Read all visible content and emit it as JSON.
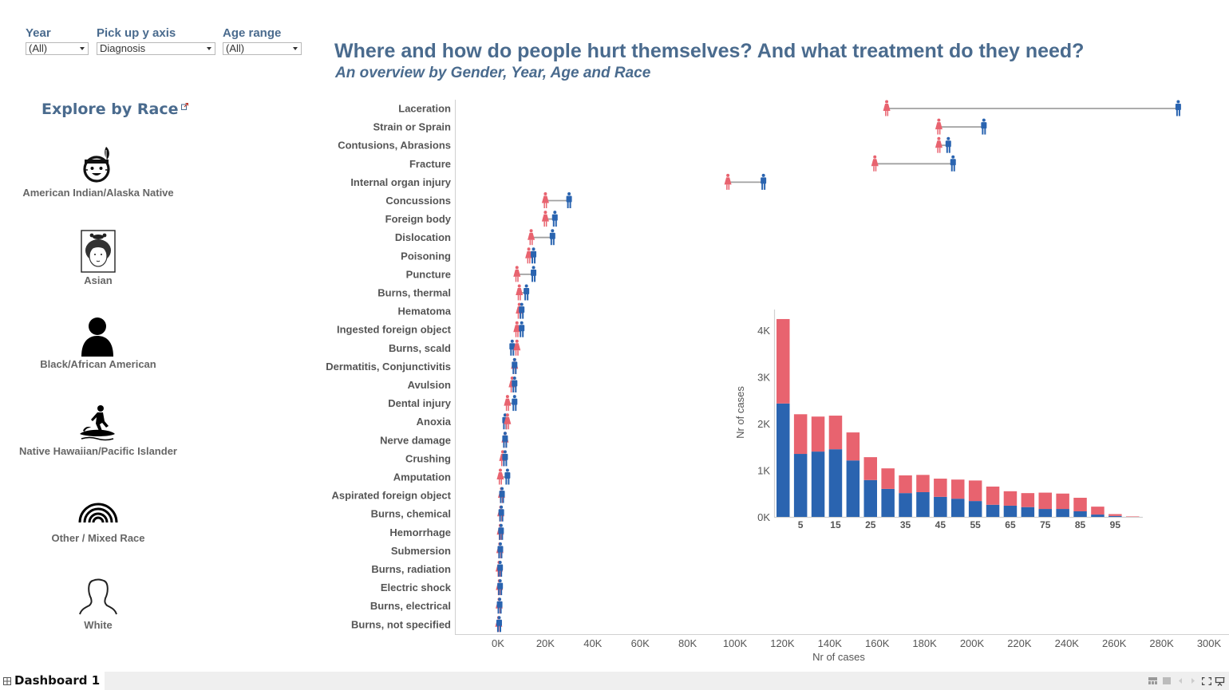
{
  "filters": [
    {
      "label": "Year",
      "value": "(All)"
    },
    {
      "label": "Pick up y axis",
      "value": "Diagnosis"
    },
    {
      "label": "Age range",
      "value": "(All)"
    }
  ],
  "header": {
    "title": "Where and how do people hurt themselves? And what treatment do they need?",
    "subtitle": "An overview by Gender, Year, Age and Race"
  },
  "sidebar": {
    "title": "Explore by Race",
    "link_icon": "external-link-icon",
    "races": [
      {
        "label": "American Indian/Alaska Native",
        "icon": "native-headdress-face-icon"
      },
      {
        "label": "Asian",
        "icon": "asian-face-icon"
      },
      {
        "label": "Black/African American",
        "icon": "person-silhouette-filled-icon"
      },
      {
        "label": "Native Hawaiian/Pacific Islander",
        "icon": "surfer-icon"
      },
      {
        "label": "Other / Mixed Race",
        "icon": "rainbow-icon"
      },
      {
        "label": "White",
        "icon": "person-outline-icon"
      }
    ]
  },
  "colors": {
    "female": "#e8636f",
    "male": "#2a64b0",
    "connector": "#a0a0a0",
    "title": "#4a6b8e",
    "axis_text": "#555555"
  },
  "chart_data": [
    {
      "type": "dumbbell",
      "title": "",
      "xlabel": "Nr of cases",
      "ylabel": "",
      "xlim": [
        0,
        300000
      ],
      "x_ticks": [
        "0K",
        "20K",
        "40K",
        "60K",
        "80K",
        "100K",
        "120K",
        "140K",
        "160K",
        "180K",
        "200K",
        "220K",
        "240K",
        "260K",
        "280K",
        "300K"
      ],
      "legend": [
        {
          "name": "Female",
          "icon": "female-figure-icon"
        },
        {
          "name": "Male",
          "icon": "male-figure-icon"
        }
      ],
      "categories": [
        "Laceration",
        "Strain or Sprain",
        "Contusions, Abrasions",
        "Fracture",
        "Internal organ injury",
        "Concussions",
        "Foreign body",
        "Dislocation",
        "Poisoning",
        "Puncture",
        "Burns, thermal",
        "Hematoma",
        "Ingested foreign object",
        "Burns, scald",
        "Dermatitis, Conjunctivitis",
        "Avulsion",
        "Dental injury",
        "Anoxia",
        "Nerve damage",
        "Crushing",
        "Amputation",
        "Aspirated foreign object",
        "Burns, chemical",
        "Hemorrhage",
        "Submersion",
        "Burns, radiation",
        "Electric shock",
        "Burns, electrical",
        "Burns, not specified"
      ],
      "series": [
        {
          "name": "Female",
          "values": [
            164000,
            186000,
            186000,
            159000,
            97000,
            20000,
            20000,
            14000,
            13000,
            8000,
            9000,
            9000,
            8000,
            8000,
            7000,
            6000,
            4000,
            4000,
            3000,
            2000,
            1000,
            1500,
            1200,
            1000,
            800,
            500,
            600,
            500,
            300
          ]
        },
        {
          "name": "Male",
          "values": [
            287000,
            205000,
            190000,
            192000,
            112000,
            30000,
            24000,
            23000,
            15000,
            15000,
            12000,
            10000,
            10000,
            6000,
            7000,
            7000,
            7000,
            3000,
            3000,
            3000,
            4000,
            1700,
            1400,
            1300,
            1000,
            900,
            900,
            700,
            500
          ]
        }
      ]
    },
    {
      "type": "bar",
      "stacked": true,
      "title": "",
      "xlabel": "",
      "ylabel": "Nr of cases",
      "ylim": [
        0,
        4400
      ],
      "y_ticks": [
        "0K",
        "1K",
        "2K",
        "3K",
        "4K"
      ],
      "x_tick_labels": [
        "5",
        "15",
        "25",
        "35",
        "45",
        "55",
        "65",
        "75",
        "85",
        "95"
      ],
      "categories": [
        0,
        5,
        10,
        15,
        20,
        25,
        30,
        35,
        40,
        45,
        50,
        55,
        60,
        65,
        70,
        75,
        80,
        85,
        90,
        95,
        100
      ],
      "series": [
        {
          "name": "Male",
          "values": [
            2430,
            1350,
            1400,
            1450,
            1210,
            790,
            600,
            510,
            530,
            430,
            390,
            340,
            260,
            240,
            210,
            170,
            170,
            120,
            50,
            20,
            0
          ]
        },
        {
          "name": "Female",
          "values": [
            1810,
            850,
            750,
            720,
            600,
            490,
            440,
            380,
            370,
            390,
            410,
            440,
            390,
            310,
            300,
            350,
            330,
            290,
            170,
            40,
            10
          ]
        }
      ]
    }
  ],
  "tabbar": {
    "tab_label": "Dashboard 1",
    "tab_icon": "dashboard-grid-icon",
    "controls": [
      "sheet-sorter-icon",
      "filmstrip-icon",
      "prev-arrow-icon",
      "next-arrow-icon",
      "fullscreen-icon",
      "presentation-icon"
    ]
  }
}
